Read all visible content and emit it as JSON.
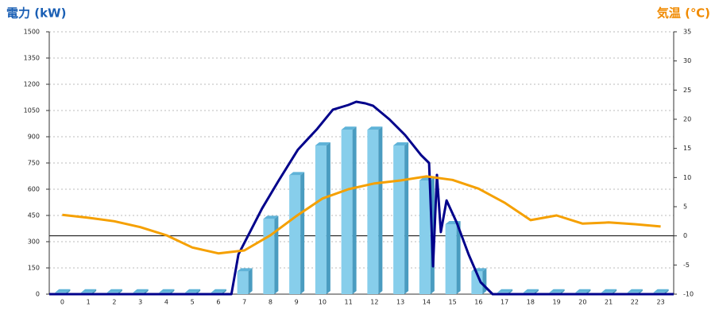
{
  "chart_data": {
    "type": "bar",
    "ylabel": "電力 (kW)",
    "y2label": "気温 (℃)",
    "categories": [
      "0",
      "1",
      "2",
      "3",
      "4",
      "5",
      "6",
      "7",
      "8",
      "9",
      "10",
      "11",
      "12",
      "13",
      "14",
      "15",
      "16",
      "17",
      "18",
      "19",
      "20",
      "21",
      "22",
      "23"
    ],
    "ylim": [
      0,
      1500
    ],
    "yticks": [
      0,
      150,
      300,
      450,
      600,
      750,
      900,
      1050,
      1200,
      1350,
      1500
    ],
    "y2lim": [
      -10,
      35
    ],
    "y2ticks": [
      -10,
      -5,
      0,
      5,
      10,
      15,
      20,
      25,
      30,
      35
    ],
    "xlim": [
      0,
      24
    ],
    "grid": true,
    "series": [
      {
        "type": "bar",
        "color": "#87ceeb",
        "values": [
          10,
          10,
          10,
          10,
          10,
          10,
          10,
          130,
          430,
          680,
          850,
          940,
          940,
          850,
          650,
          400,
          130,
          10,
          10,
          10,
          10,
          10,
          10,
          10
        ]
      },
      {
        "type": "line",
        "color": "#00008b",
        "x": [
          0,
          7.0,
          7.27,
          8.18,
          8.8,
          9.56,
          10.3,
          10.9,
          11.5,
          11.8,
          12.15,
          12.45,
          13.07,
          13.68,
          14.29,
          14.6,
          14.75,
          14.9,
          15.05,
          15.27,
          15.66,
          16.12,
          16.58,
          17.04,
          24
        ],
        "values": [
          0,
          0,
          227,
          490,
          645,
          827,
          945,
          1055,
          1082,
          1100,
          1091,
          1077,
          1000,
          909,
          795,
          750,
          159,
          682,
          355,
          536,
          409,
          227,
          68,
          0,
          0
        ]
      },
      {
        "type": "line",
        "axis": "y2",
        "color": "#f5a000",
        "values": [
          3.6,
          3.1,
          2.5,
          1.5,
          0.1,
          -2.0,
          -3.0,
          -2.5,
          0.1,
          3.4,
          6.4,
          8.0,
          9.0,
          9.5,
          10.2,
          9.6,
          8.1,
          5.7,
          2.7,
          3.5,
          2.1,
          2.3,
          2.0,
          1.6
        ]
      }
    ]
  }
}
